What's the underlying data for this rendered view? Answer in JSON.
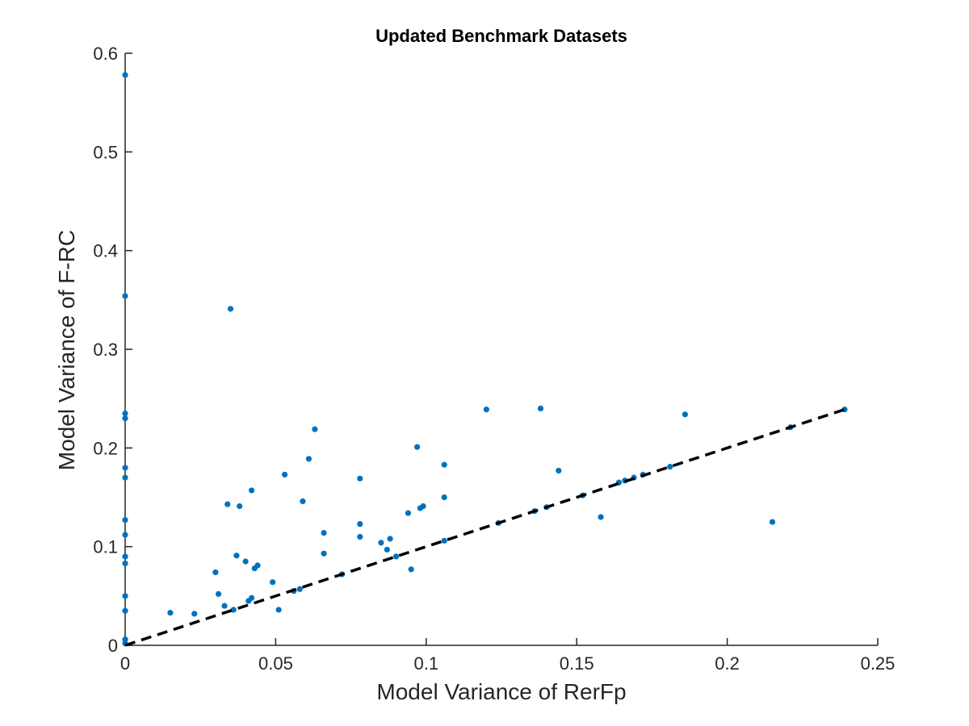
{
  "chart_data": {
    "type": "scatter",
    "title": "Updated Benchmark Datasets",
    "xlabel": "Model Variance of RerFp",
    "ylabel": "Model Variance of F-RC",
    "xlim": [
      0,
      0.25
    ],
    "ylim": [
      0,
      0.6
    ],
    "xticks": [
      0,
      0.05,
      0.1,
      0.15,
      0.2,
      0.25
    ],
    "xtick_labels": [
      "0",
      "0.05",
      "0.1",
      "0.15",
      "0.2",
      "0.25"
    ],
    "yticks": [
      0,
      0.1,
      0.2,
      0.3,
      0.4,
      0.5,
      0.6
    ],
    "ytick_labels": [
      "0",
      "0.1",
      "0.2",
      "0.3",
      "0.4",
      "0.5",
      "0.6"
    ],
    "grid": false,
    "point_color": "#0072BD",
    "reference_line": {
      "style": "dashed",
      "color": "#000000",
      "x": [
        0,
        0.239
      ],
      "y": [
        0,
        0.239
      ]
    },
    "series": [
      {
        "points": [
          [
            0,
            0.578
          ],
          [
            0,
            0.354
          ],
          [
            0,
            0.235
          ],
          [
            0,
            0.23
          ],
          [
            0,
            0.18
          ],
          [
            0,
            0.17
          ],
          [
            0,
            0.127
          ],
          [
            0,
            0.112
          ],
          [
            0,
            0.09
          ],
          [
            0,
            0.083
          ],
          [
            0,
            0.05
          ],
          [
            0,
            0.035
          ],
          [
            0,
            0.006
          ],
          [
            0,
            0.002
          ],
          [
            0.015,
            0.033
          ],
          [
            0.023,
            0.032
          ],
          [
            0.03,
            0.074
          ],
          [
            0.031,
            0.052
          ],
          [
            0.033,
            0.04
          ],
          [
            0.034,
            0.143
          ],
          [
            0.035,
            0.341
          ],
          [
            0.036,
            0.036
          ],
          [
            0.037,
            0.091
          ],
          [
            0.038,
            0.141
          ],
          [
            0.04,
            0.085
          ],
          [
            0.041,
            0.045
          ],
          [
            0.042,
            0.157
          ],
          [
            0.042,
            0.048
          ],
          [
            0.043,
            0.078
          ],
          [
            0.044,
            0.081
          ],
          [
            0.049,
            0.064
          ],
          [
            0.051,
            0.036
          ],
          [
            0.053,
            0.173
          ],
          [
            0.056,
            0.055
          ],
          [
            0.058,
            0.057
          ],
          [
            0.059,
            0.146
          ],
          [
            0.061,
            0.189
          ],
          [
            0.063,
            0.219
          ],
          [
            0.066,
            0.114
          ],
          [
            0.066,
            0.093
          ],
          [
            0.072,
            0.072
          ],
          [
            0.078,
            0.11
          ],
          [
            0.078,
            0.123
          ],
          [
            0.078,
            0.169
          ],
          [
            0.085,
            0.104
          ],
          [
            0.087,
            0.097
          ],
          [
            0.088,
            0.108
          ],
          [
            0.09,
            0.09
          ],
          [
            0.094,
            0.134
          ],
          [
            0.095,
            0.077
          ],
          [
            0.097,
            0.201
          ],
          [
            0.098,
            0.139
          ],
          [
            0.099,
            0.141
          ],
          [
            0.106,
            0.183
          ],
          [
            0.106,
            0.15
          ],
          [
            0.106,
            0.106
          ],
          [
            0.12,
            0.239
          ],
          [
            0.124,
            0.124
          ],
          [
            0.136,
            0.136
          ],
          [
            0.138,
            0.24
          ],
          [
            0.14,
            0.14
          ],
          [
            0.144,
            0.177
          ],
          [
            0.152,
            0.152
          ],
          [
            0.158,
            0.13
          ],
          [
            0.164,
            0.165
          ],
          [
            0.166,
            0.167
          ],
          [
            0.169,
            0.17
          ],
          [
            0.172,
            0.173
          ],
          [
            0.181,
            0.181
          ],
          [
            0.186,
            0.234
          ],
          [
            0.215,
            0.125
          ],
          [
            0.221,
            0.221
          ],
          [
            0.239,
            0.239
          ]
        ]
      }
    ]
  }
}
